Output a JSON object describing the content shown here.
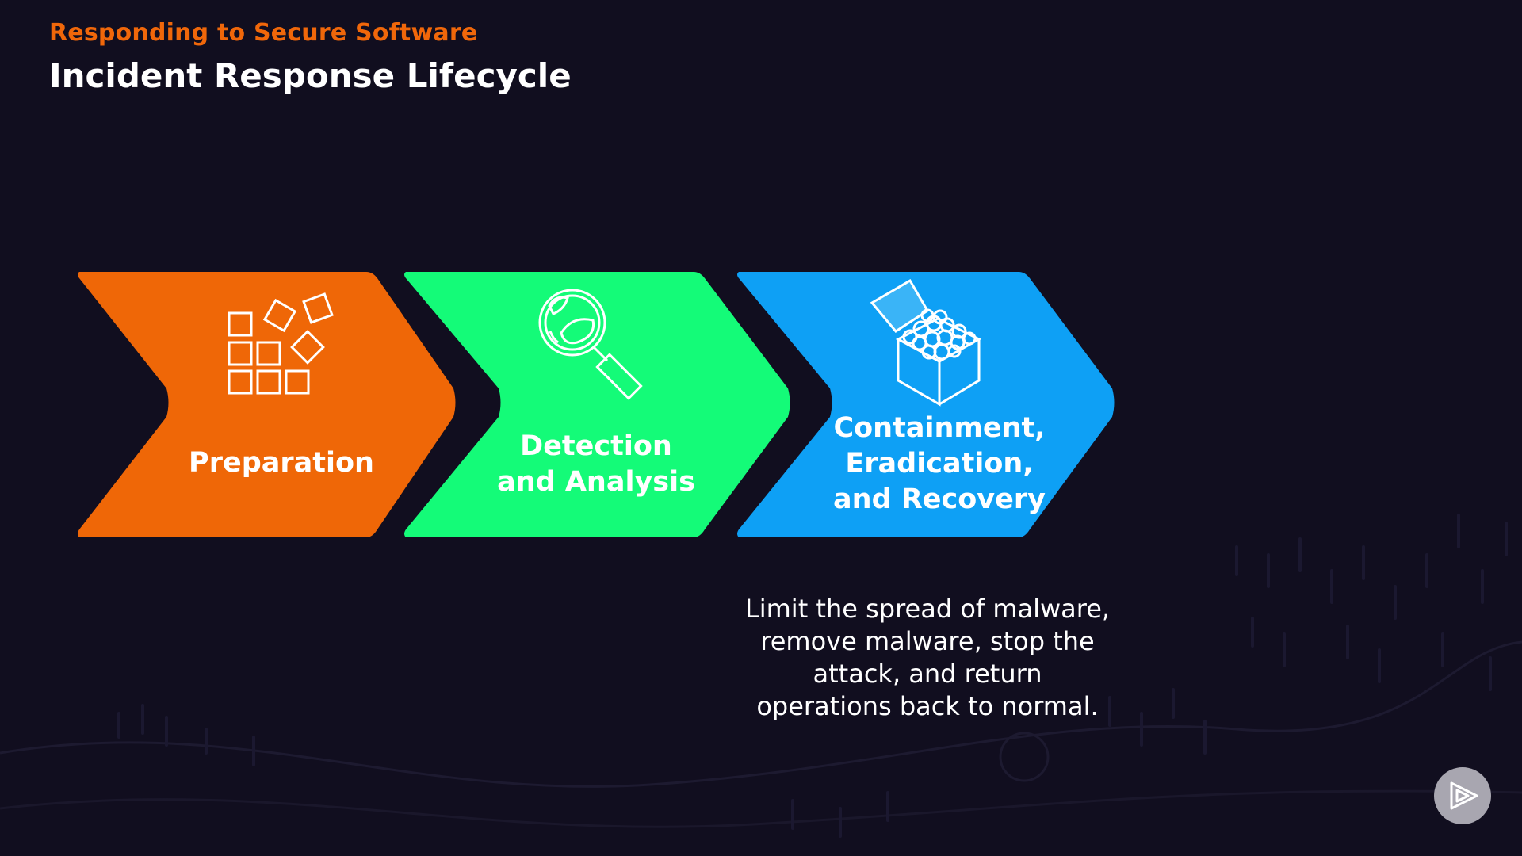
{
  "header": {
    "kicker": "Responding to Secure Software",
    "title": "Incident Response Lifecycle"
  },
  "stages": [
    {
      "label": "Preparation",
      "icon": "blocks-icon",
      "color": "#ef6707"
    },
    {
      "label": "Detection\nand Analysis",
      "icon": "magnifier-globe-icon",
      "color": "#14fb78"
    },
    {
      "label": "Containment,\nEradication,\nand Recovery",
      "icon": "box-of-balls-icon",
      "color": "#0ea0f5"
    }
  ],
  "description": "Limit the spread of malware,\nremove malware, stop the\nattack, and return\noperations back to normal.",
  "player": {
    "icon": "play-logo-icon"
  },
  "colors": {
    "background": "#110e1f",
    "accent": "#f0670a",
    "text": "#ffffff"
  }
}
